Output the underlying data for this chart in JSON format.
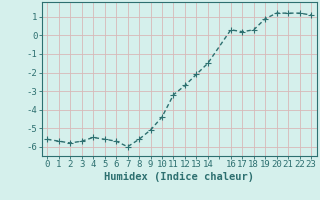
{
  "x": [
    0,
    1,
    2,
    3,
    4,
    5,
    6,
    7,
    8,
    9,
    10,
    11,
    12,
    13,
    14,
    16,
    17,
    18,
    19,
    20,
    21,
    22,
    23
  ],
  "y": [
    -5.6,
    -5.7,
    -5.8,
    -5.7,
    -5.5,
    -5.6,
    -5.7,
    -6.0,
    -5.6,
    -5.1,
    -4.4,
    -3.2,
    -2.7,
    -2.1,
    -1.5,
    0.3,
    0.2,
    0.3,
    0.9,
    1.2,
    1.2,
    1.2,
    1.1
  ],
  "line_color": "#2d7070",
  "marker": "+",
  "marker_size": 4,
  "bg_color": "#d5f0ec",
  "grid_color": "#c8e0dc",
  "tick_color": "#2d7070",
  "label_color": "#2d7070",
  "xlabel": "Humidex (Indice chaleur)",
  "xlim": [
    -0.5,
    23.5
  ],
  "ylim": [
    -6.5,
    1.8
  ],
  "yticks": [
    -6,
    -5,
    -4,
    -3,
    -2,
    -1,
    0,
    1
  ],
  "xtick_labels": [
    "0",
    "1",
    "2",
    "3",
    "4",
    "5",
    "6",
    "7",
    "8",
    "9",
    "10",
    "11",
    "12",
    "13",
    "14",
    "",
    "16",
    "17",
    "18",
    "19",
    "20",
    "21",
    "22",
    "23"
  ],
  "xtick_positions": [
    0,
    1,
    2,
    3,
    4,
    5,
    6,
    7,
    8,
    9,
    10,
    11,
    12,
    13,
    14,
    15,
    16,
    17,
    18,
    19,
    20,
    21,
    22,
    23
  ],
  "font_size": 6.5,
  "xlabel_fontsize": 7.5,
  "linewidth": 1.0,
  "marker_lw": 0.8
}
